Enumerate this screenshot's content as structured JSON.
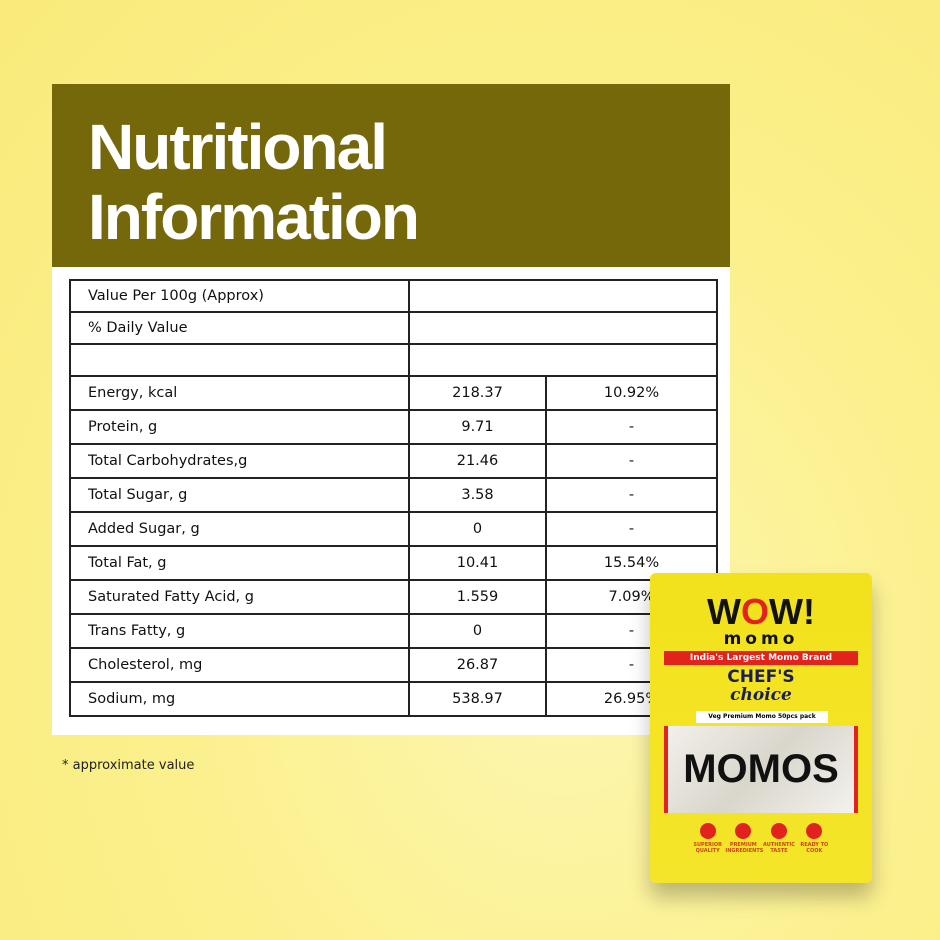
{
  "header": {
    "title_line1": "Nutritional",
    "title_line2": "Information"
  },
  "table": {
    "header_rows": [
      "Value Per 100g (Approx)",
      "% Daily Value",
      ""
    ],
    "rows": [
      {
        "label": "Energy, kcal",
        "value": "218.37",
        "dv": "10.92%"
      },
      {
        "label": "Protein, g",
        "value": "9.71",
        "dv": "-"
      },
      {
        "label": "Total Carbohydrates,g",
        "value": "21.46",
        "dv": "-"
      },
      {
        "label": "Total Sugar, g",
        "value": "3.58",
        "dv": "-"
      },
      {
        "label": "Added Sugar, g",
        "value": "0",
        "dv": "-"
      },
      {
        "label": "Total Fat, g",
        "value": "10.41",
        "dv": "15.54%"
      },
      {
        "label": "Saturated Fatty Acid, g",
        "value": "1.559",
        "dv": "7.09%"
      },
      {
        "label": "Trans Fatty, g",
        "value": "0",
        "dv": "-"
      },
      {
        "label": "Cholesterol, mg",
        "value": "26.87",
        "dv": "-"
      },
      {
        "label": "Sodium, mg",
        "value": "538.97",
        "dv": "26.95%"
      }
    ]
  },
  "note": "* approximate value",
  "product": {
    "brand": "WOW!",
    "brand_sub": "momo",
    "tagline": "India's Largest Momo Brand",
    "line1": "CHEF'S",
    "line2": "choice",
    "variant": "Veg Premium Momo 50pcs pack",
    "name": "MOMOS",
    "badges": [
      "SUPERIOR QUALITY",
      "PREMIUM INGREDIENTS",
      "AUTHENTIC TASTE",
      "READY TO COOK"
    ]
  },
  "colors": {
    "header": "#75680b",
    "background": "#fbf08c",
    "accent": "#e2221d"
  }
}
